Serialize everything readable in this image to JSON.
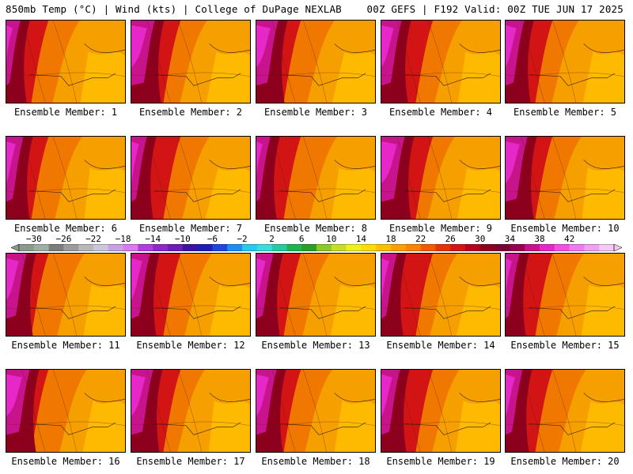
{
  "header": {
    "left": "850mb Temp (°C) | Wind (kts) | College of DuPage NEXLAB",
    "right": "00Z GEFS | F192 Valid: 00Z TUE JUN 17 2025"
  },
  "members": [
    "Ensemble Member: 1",
    "Ensemble Member: 2",
    "Ensemble Member: 3",
    "Ensemble Member: 4",
    "Ensemble Member: 5",
    "Ensemble Member: 6",
    "Ensemble Member: 7",
    "Ensemble Member: 8",
    "Ensemble Member: 9",
    "Ensemble Member: 10",
    "Ensemble Member: 11",
    "Ensemble Member: 12",
    "Ensemble Member: 13",
    "Ensemble Member: 14",
    "Ensemble Member: 15",
    "Ensemble Member: 16",
    "Ensemble Member: 17",
    "Ensemble Member: 18",
    "Ensemble Member: 19",
    "Ensemble Member: 20"
  ],
  "colorbar": {
    "labels": [
      "−30",
      "−26",
      "−22",
      "−18",
      "−14",
      "−10",
      "−6",
      "−2",
      "2",
      "6",
      "10",
      "14",
      "18",
      "22",
      "26",
      "30",
      "34",
      "38",
      "42"
    ],
    "colors": [
      "#8a9a8c",
      "#a0aea2",
      "#7d7d7d",
      "#9c9c9c",
      "#b8b8b8",
      "#c8c8dc",
      "#c8a0e6",
      "#dc78f0",
      "#b43cdc",
      "#8c28c8",
      "#6e1eb4",
      "#3c14a0",
      "#1e1eb4",
      "#1e46dc",
      "#1e8cf0",
      "#28c8f0",
      "#3cdcdc",
      "#28c8a0",
      "#1eb450",
      "#28a028",
      "#8cc828",
      "#c8dc28",
      "#f0f01e",
      "#ffdc00",
      "#ffbe00",
      "#ffa000",
      "#ff8200",
      "#f05a00",
      "#e63200",
      "#d21414",
      "#b4001e",
      "#8c001e",
      "#780032",
      "#960050",
      "#c8148c",
      "#e628c8",
      "#f050e6",
      "#f078f0",
      "#f0a0f0",
      "#f5c8f5"
    ]
  }
}
